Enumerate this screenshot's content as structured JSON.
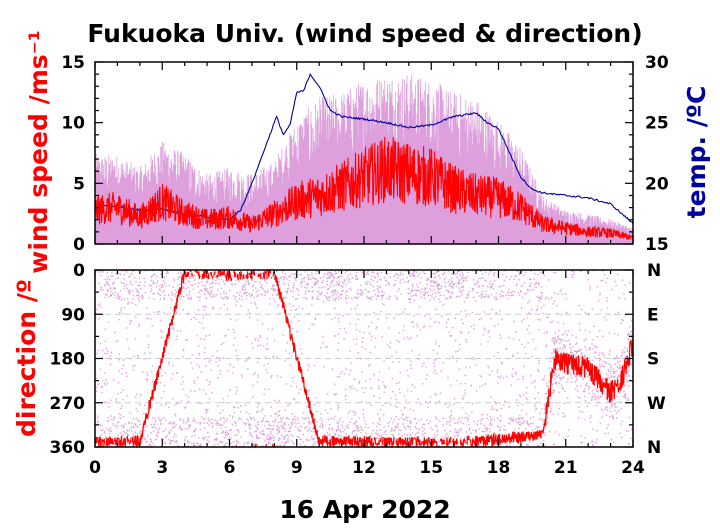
{
  "chart_data": [
    {
      "type": "line",
      "title": "Fukuoka Univ. (wind speed & direction)",
      "xlabel": "",
      "ylabel": "wind speed /ms⁻¹",
      "y2label": "temp. /ºC",
      "xlim": [
        0,
        24
      ],
      "ylim": [
        0,
        15
      ],
      "y2lim": [
        15,
        30
      ],
      "x_ticks": [
        "0",
        "3",
        "6",
        "9",
        "12",
        "15",
        "18",
        "21",
        "24"
      ],
      "y_ticks": [
        "0",
        "5",
        "10",
        "15"
      ],
      "y2_ticks": [
        "15",
        "20",
        "25",
        "30"
      ],
      "colors": {
        "gust": "#dda0dd",
        "mean": "#ff0000",
        "temp": "#00009f",
        "axis": "#000000"
      },
      "series": [
        {
          "name": "",
          "axis": "temp",
          "x": [
            0,
            1,
            2,
            3,
            4,
            5,
            6,
            6.5,
            7,
            7.5,
            7.8,
            8.1,
            8.4,
            8.7,
            9,
            9.3,
            9.6,
            10,
            10.5,
            11,
            12,
            13,
            14,
            15,
            16,
            17,
            17.5,
            18,
            18.5,
            19,
            19.5,
            20,
            21,
            22,
            23,
            23.5,
            24
          ],
          "values": [
            18.2,
            18.1,
            17.8,
            17.9,
            17.5,
            17.2,
            17.0,
            17.8,
            20.0,
            22.5,
            24.0,
            25.5,
            24.0,
            24.8,
            27.5,
            27.6,
            29.0,
            28.0,
            26.0,
            25.5,
            25.3,
            25.0,
            24.6,
            24.8,
            25.5,
            25.8,
            25.0,
            24.5,
            22.5,
            20.5,
            19.5,
            19.2,
            19.0,
            18.8,
            18.3,
            17.5,
            16.7
          ]
        },
        {
          "name": "",
          "axis": "speed",
          "x": [
            0,
            1,
            2,
            3,
            4,
            5,
            6,
            7,
            8,
            9,
            10,
            11,
            12,
            13,
            14,
            15,
            16,
            17,
            18,
            19,
            20,
            21,
            22,
            23,
            24
          ],
          "values": [
            2.8,
            3.0,
            2.2,
            3.5,
            2.5,
            2.0,
            2.2,
            1.6,
            2.5,
            3.5,
            4.0,
            4.7,
            5.5,
            6.2,
            5.8,
            5.5,
            4.5,
            4.0,
            3.8,
            3.0,
            1.6,
            1.3,
            1.0,
            0.9,
            0.5
          ]
        },
        {
          "name": "",
          "axis": "speed",
          "role": "gust",
          "x": [
            0,
            1,
            2,
            3,
            4,
            5,
            6,
            7,
            8,
            9,
            10,
            11,
            12,
            13,
            14,
            15,
            16,
            17,
            18,
            19,
            20,
            21,
            22,
            23,
            24
          ],
          "values": [
            6.5,
            6.5,
            5.5,
            7.5,
            6.5,
            5.0,
            5.5,
            5.0,
            6.0,
            9.0,
            10.5,
            11.0,
            12.0,
            12.5,
            12.5,
            12.0,
            11.0,
            10.5,
            9.0,
            7.0,
            3.5,
            2.5,
            2.2,
            1.8,
            1.2
          ]
        }
      ]
    },
    {
      "type": "scatter",
      "title": "",
      "xlabel": "16 Apr 2022",
      "ylabel": "direction /º",
      "xlim": [
        0,
        24
      ],
      "ylim": [
        0,
        360
      ],
      "x_ticks": [
        "0",
        "3",
        "6",
        "9",
        "12",
        "15",
        "18",
        "21",
        "24"
      ],
      "y_ticks": [
        "0",
        "90",
        "180",
        "270",
        "360"
      ],
      "y2_ticks": [
        "N",
        "E",
        "S",
        "W",
        "N"
      ],
      "series": [
        {
          "name": "",
          "role": "mean-direction",
          "x": [
            0,
            2,
            4,
            6,
            8,
            10,
            12,
            14,
            16,
            18,
            19,
            20,
            20.5,
            21,
            22,
            23,
            23.5,
            24
          ],
          "values": [
            350,
            350,
            5,
            10,
            5,
            350,
            350,
            352,
            352,
            345,
            340,
            330,
            180,
            190,
            200,
            250,
            220,
            150
          ]
        }
      ]
    }
  ]
}
